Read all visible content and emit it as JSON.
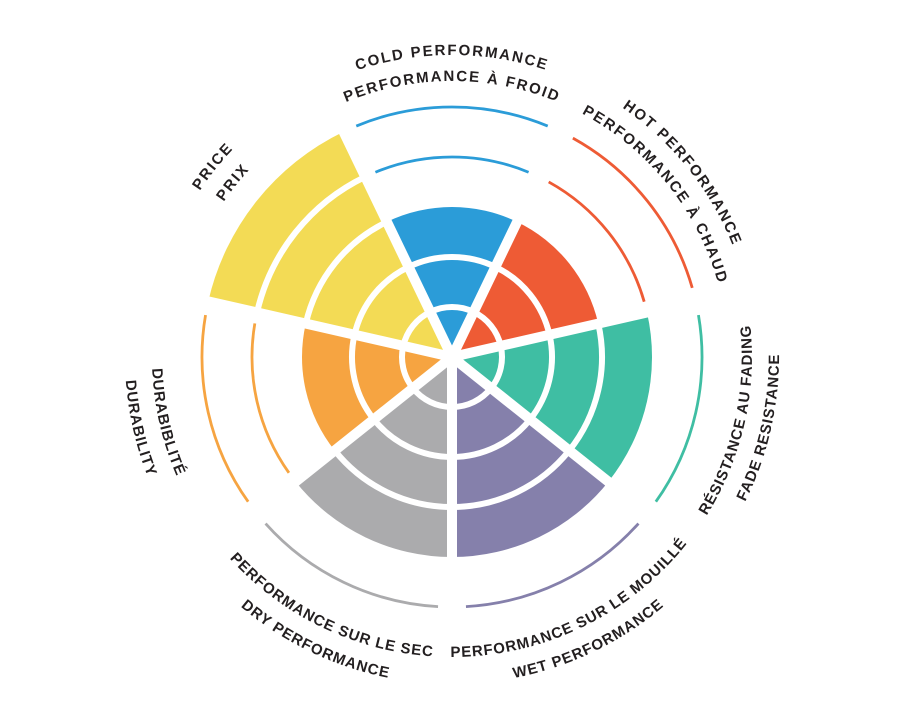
{
  "page": {
    "background": "#ffffff",
    "description": "Bilingual (EN/FR) brake performance rating wheel"
  },
  "chart_data": {
    "type": "radar",
    "variant": "segmented polar rating wheel (coxcomb), 7 sectors, 5 concentric levels",
    "title": "",
    "scale": {
      "min": 0,
      "max": 5,
      "rings": 5
    },
    "grid": "thin colored arcs mark unfilled ring levels; white arcs divide filled levels; white spokes separate sectors",
    "legend_position": "curved labels around perimeter",
    "text_color": "#231F20",
    "categories": [
      {
        "id": "cold-performance",
        "lines": [
          "COLD PERFORMANCE",
          "PERFORMANCE À FROID"
        ],
        "value": 3,
        "color": "#2B9CD8",
        "label_facing": "outward"
      },
      {
        "id": "hot-performance",
        "lines": [
          "HOT PERFORMANCE",
          "PERFORMANCE À CHAUD"
        ],
        "value": 3,
        "color": "#EE5B35",
        "label_facing": "outward"
      },
      {
        "id": "fade-resistance",
        "lines": [
          "RÉSISTANCE AU FADING",
          "FADE RESISTANCE"
        ],
        "value": 4,
        "color": "#3FBEA3",
        "label_facing": "inward"
      },
      {
        "id": "wet-performance",
        "lines": [
          "PERFORMANCE SUR LE MOUILLÉ",
          "WET PERFORMANCE"
        ],
        "value": 4,
        "color": "#8580AB",
        "label_facing": "inward"
      },
      {
        "id": "dry-performance",
        "lines": [
          "PERFORMANCE SUR LE SEC",
          "DRY PERFORMANCE"
        ],
        "value": 4,
        "color": "#ABABAD",
        "label_facing": "inward"
      },
      {
        "id": "durability",
        "lines": [
          "DURABIBLITÉ",
          "DURABILITY"
        ],
        "value": 3,
        "color": "#F6A441",
        "label_facing": "inward"
      },
      {
        "id": "price",
        "lines": [
          "PRICE",
          "PRIX"
        ],
        "value": 5,
        "color": "#F3DB55",
        "label_facing": "outward"
      }
    ]
  }
}
